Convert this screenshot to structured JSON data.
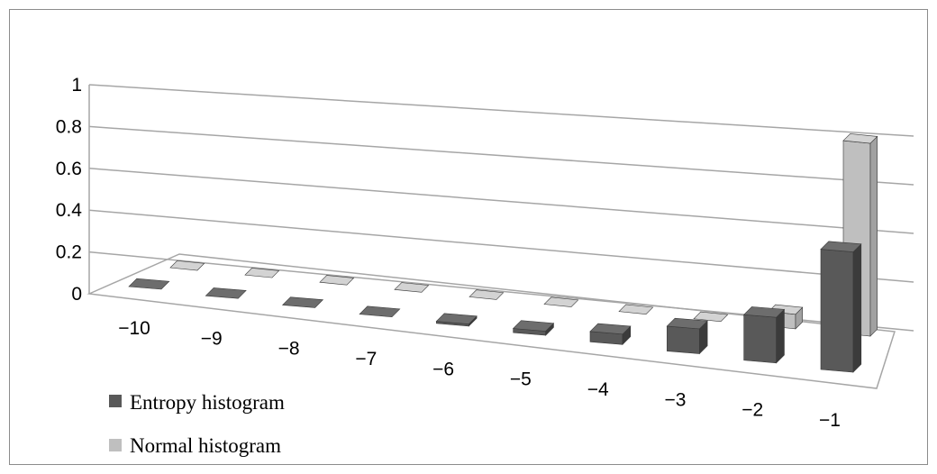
{
  "chart_data": {
    "type": "bar",
    "categories": [
      "−10",
      "−9",
      "−8",
      "−7",
      "−6",
      "−5",
      "−4",
      "−3",
      "−2",
      "−1"
    ],
    "series": [
      {
        "name": "Entropy histogram",
        "values": [
          0,
          0,
          0,
          0,
          0.01,
          0.02,
          0.05,
          0.12,
          0.22,
          0.58
        ]
      },
      {
        "name": "Normal histogram",
        "values": [
          0,
          0,
          0,
          0,
          0,
          0,
          0,
          0,
          0.07,
          0.93
        ]
      }
    ],
    "yticks": [
      "0",
      "0.2",
      "0.4",
      "0.6",
      "0.8",
      "1"
    ],
    "ylim": [
      0,
      1
    ],
    "grid": true,
    "legend_position": "bottom-left",
    "colors": {
      "entropy": "#595959",
      "normal": "#bfbfbf",
      "gridline": "#a6a6a6"
    }
  }
}
